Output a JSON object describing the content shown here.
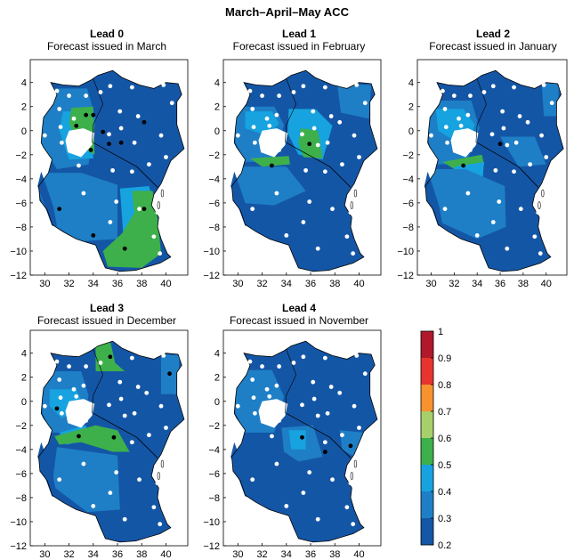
{
  "title": "March–April–May ACC",
  "panels": [
    {
      "lead": "Lead 0",
      "subtitle": "Forecast issued in March"
    },
    {
      "lead": "Lead 1",
      "subtitle": "Forecast issued in February"
    },
    {
      "lead": "Lead 2",
      "subtitle": "Forecast issued in January"
    },
    {
      "lead": "Lead 3",
      "subtitle": "Forecast issued in December"
    },
    {
      "lead": "Lead 4",
      "subtitle": "Forecast issued in November"
    }
  ],
  "x_ticks": [
    "30",
    "32",
    "34",
    "36",
    "38",
    "40"
  ],
  "y_ticks": [
    "4",
    "2",
    "0",
    "−2",
    "−4",
    "−6",
    "−8",
    "−10",
    "−12"
  ],
  "colorbar": {
    "labels": [
      "1",
      "0.9",
      "0.8",
      "0.7",
      "0.6",
      "0.5",
      "0.4",
      "0.3",
      "0.2"
    ],
    "colors": [
      "#b2182b",
      "#e8342e",
      "#f7922e",
      "#a7cf6b",
      "#3db04b",
      "#16a3df",
      "#1e7fc6",
      "#1456a6"
    ]
  },
  "colors": {
    "base": "#1456a6",
    "mid": "#1e7fc6",
    "light": "#16a3df",
    "green": "#3db04b"
  }
}
